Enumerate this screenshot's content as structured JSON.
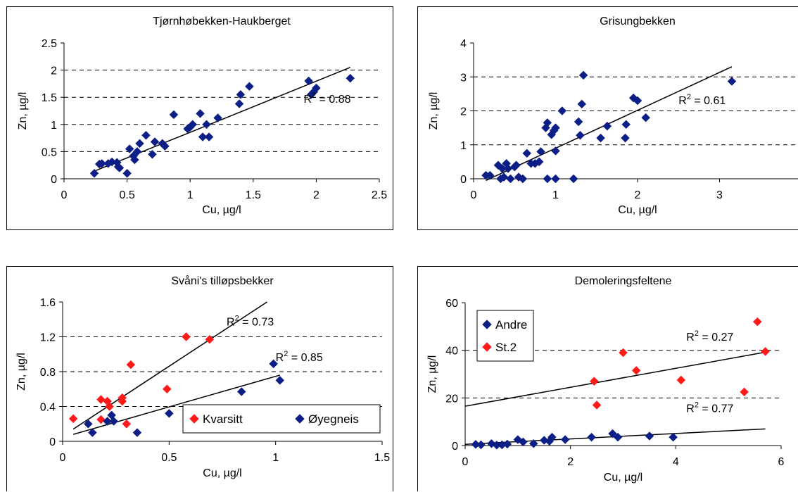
{
  "colors": {
    "blue": "#0c1f86",
    "red": "#ff1a1a",
    "grid": "#000000",
    "line": "#000000"
  },
  "chart_data": [
    {
      "type": "scatter",
      "title": "Tjørnhøbekken-Haukberget",
      "xlabel": "Cu, µg/l",
      "ylabel": "Zn, µg/l",
      "xlim": [
        0,
        2.5
      ],
      "ylim": [
        0,
        2.5
      ],
      "xticks": [
        "0",
        "0.5",
        "1",
        "1.5",
        "2",
        "2.5"
      ],
      "yticks": [
        "0",
        "0.5",
        "1",
        "1.5",
        "2",
        "2.5"
      ],
      "grid": "horizontal-dashed",
      "legend": null,
      "series": [
        {
          "marker": "diamond",
          "color": "blue",
          "points": [
            [
              0.24,
              0.1
            ],
            [
              0.28,
              0.27
            ],
            [
              0.3,
              0.28
            ],
            [
              0.35,
              0.28
            ],
            [
              0.38,
              0.31
            ],
            [
              0.42,
              0.3
            ],
            [
              0.43,
              0.22
            ],
            [
              0.44,
              0.2
            ],
            [
              0.5,
              0.1
            ],
            [
              0.52,
              0.55
            ],
            [
              0.55,
              0.42
            ],
            [
              0.56,
              0.35
            ],
            [
              0.58,
              0.5
            ],
            [
              0.6,
              0.65
            ],
            [
              0.65,
              0.8
            ],
            [
              0.7,
              0.45
            ],
            [
              0.72,
              0.68
            ],
            [
              0.78,
              0.65
            ],
            [
              0.8,
              0.6
            ],
            [
              0.87,
              1.18
            ],
            [
              0.98,
              0.92
            ],
            [
              1.0,
              0.95
            ],
            [
              1.02,
              1.0
            ],
            [
              1.08,
              1.2
            ],
            [
              1.1,
              0.77
            ],
            [
              1.13,
              1.0
            ],
            [
              1.15,
              0.77
            ],
            [
              1.22,
              1.12
            ],
            [
              1.39,
              1.38
            ],
            [
              1.4,
              1.55
            ],
            [
              1.47,
              1.7
            ],
            [
              1.94,
              1.8
            ],
            [
              1.96,
              1.55
            ],
            [
              1.98,
              1.6
            ],
            [
              2.0,
              1.67
            ],
            [
              2.27,
              1.85
            ]
          ]
        }
      ],
      "trendlines": [
        {
          "x": [
            0.25,
            2.27
          ],
          "y": [
            0.15,
            2.05
          ]
        }
      ],
      "annotations": [
        {
          "base": "R",
          "sup": "2",
          "rest": " = 0.88",
          "x": 1.9,
          "y": 1.4
        }
      ]
    },
    {
      "type": "scatter",
      "title": "Grisungbekken",
      "xlabel": "Cu, µg/l",
      "ylabel": "Zn, µg/l",
      "xlim": [
        0,
        4
      ],
      "ylim": [
        0,
        4
      ],
      "xticks": [
        "0",
        "1",
        "2",
        "3",
        "4"
      ],
      "yticks": [
        "0",
        "1",
        "2",
        "3",
        "4"
      ],
      "grid": "horizontal-dashed",
      "legend": null,
      "series": [
        {
          "marker": "diamond",
          "color": "blue",
          "points": [
            [
              0.15,
              0.1
            ],
            [
              0.2,
              0.1
            ],
            [
              0.3,
              0.4
            ],
            [
              0.33,
              0.0
            ],
            [
              0.35,
              0.3
            ],
            [
              0.37,
              0.05
            ],
            [
              0.4,
              0.45
            ],
            [
              0.42,
              0.3
            ],
            [
              0.45,
              0.0
            ],
            [
              0.5,
              0.35
            ],
            [
              0.52,
              0.4
            ],
            [
              0.55,
              0.05
            ],
            [
              0.6,
              0.0
            ],
            [
              0.65,
              0.75
            ],
            [
              0.7,
              0.45
            ],
            [
              0.75,
              0.45
            ],
            [
              0.8,
              0.5
            ],
            [
              0.82,
              0.8
            ],
            [
              0.88,
              1.5
            ],
            [
              0.9,
              1.65
            ],
            [
              0.9,
              0.0
            ],
            [
              0.95,
              1.3
            ],
            [
              0.98,
              1.42
            ],
            [
              1.0,
              1.5
            ],
            [
              1.0,
              0.82
            ],
            [
              1.0,
              0.0
            ],
            [
              1.08,
              2.0
            ],
            [
              1.22,
              0.0
            ],
            [
              1.28,
              1.68
            ],
            [
              1.3,
              1.28
            ],
            [
              1.32,
              2.2
            ],
            [
              1.34,
              3.05
            ],
            [
              1.55,
              1.2
            ],
            [
              1.63,
              1.55
            ],
            [
              1.85,
              1.2
            ],
            [
              1.86,
              1.6
            ],
            [
              1.95,
              2.38
            ],
            [
              2.0,
              2.3
            ],
            [
              2.1,
              1.8
            ],
            [
              3.15,
              2.87
            ]
          ]
        }
      ],
      "trendlines": [
        {
          "x": [
            0.15,
            3.15
          ],
          "y": [
            -0.05,
            3.3
          ]
        }
      ],
      "annotations": [
        {
          "base": "R",
          "sup": "2",
          "rest": " = 0.61",
          "x": 2.5,
          "y": 2.2
        }
      ]
    },
    {
      "type": "scatter",
      "title": "Svåni's tilløpsbekker",
      "xlabel": "Cu, µg/l",
      "ylabel": "Zn, µg/l",
      "xlim": [
        0,
        1.5
      ],
      "ylim": [
        0,
        1.6
      ],
      "xticks": [
        "0",
        "0.5",
        "1",
        "1.5"
      ],
      "yticks": [
        "0",
        "0.4",
        "0.8",
        "1.2",
        "1.6"
      ],
      "grid": "horizontal-dashed",
      "legend": "bottom-right",
      "series": [
        {
          "name": "Kvarsitt",
          "marker": "diamond",
          "color": "red",
          "points": [
            [
              0.05,
              0.26
            ],
            [
              0.18,
              0.25
            ],
            [
              0.18,
              0.48
            ],
            [
              0.21,
              0.46
            ],
            [
              0.22,
              0.4
            ],
            [
              0.28,
              0.5
            ],
            [
              0.28,
              0.46
            ],
            [
              0.3,
              0.2
            ],
            [
              0.32,
              0.88
            ],
            [
              0.49,
              0.6
            ],
            [
              0.58,
              1.2
            ],
            [
              0.69,
              1.17
            ]
          ]
        },
        {
          "name": "Øyegneis",
          "marker": "diamond",
          "color": "blue",
          "points": [
            [
              0.12,
              0.2
            ],
            [
              0.14,
              0.1
            ],
            [
              0.21,
              0.23
            ],
            [
              0.23,
              0.3
            ],
            [
              0.24,
              0.23
            ],
            [
              0.35,
              0.1
            ],
            [
              0.5,
              0.32
            ],
            [
              0.84,
              0.57
            ],
            [
              0.99,
              0.89
            ],
            [
              1.02,
              0.7
            ]
          ]
        }
      ],
      "trendlines": [
        {
          "x": [
            0.05,
            0.96
          ],
          "y": [
            0.14,
            1.6
          ]
        },
        {
          "x": [
            0.05,
            1.02
          ],
          "y": [
            0.08,
            0.76
          ]
        }
      ],
      "annotations": [
        {
          "base": "R",
          "sup": "2",
          "rest": " = 0.73",
          "x": 0.77,
          "y": 1.33
        },
        {
          "base": "R",
          "sup": "2",
          "rest": " = 0.85",
          "x": 1.0,
          "y": 0.92
        }
      ]
    },
    {
      "type": "scatter",
      "title": "Demoleringsfeltene",
      "xlabel": "Cu, µg/l",
      "ylabel": "Zn, µg/l",
      "xlim": [
        0,
        6
      ],
      "ylim": [
        0,
        60
      ],
      "xticks": [
        "0",
        "2",
        "4",
        "6"
      ],
      "yticks": [
        "0",
        "20",
        "40",
        "60"
      ],
      "grid": "horizontal-dashed",
      "legend": "top-left",
      "series": [
        {
          "name": "Andre",
          "marker": "diamond",
          "color": "blue",
          "points": [
            [
              0.2,
              0.5
            ],
            [
              0.3,
              0.3
            ],
            [
              0.5,
              0.8
            ],
            [
              0.6,
              0.2
            ],
            [
              0.7,
              0.3
            ],
            [
              0.8,
              0.6
            ],
            [
              1.0,
              2.5
            ],
            [
              1.1,
              1.5
            ],
            [
              1.3,
              0.8
            ],
            [
              1.5,
              2.2
            ],
            [
              1.6,
              1.8
            ],
            [
              1.65,
              3.5
            ],
            [
              1.9,
              2.5
            ],
            [
              2.4,
              3.5
            ],
            [
              2.8,
              5.0
            ],
            [
              2.9,
              3.5
            ],
            [
              3.5,
              4.0
            ],
            [
              3.95,
              3.5
            ]
          ]
        },
        {
          "name": "St.2",
          "marker": "diamond",
          "color": "red",
          "points": [
            [
              2.45,
              27
            ],
            [
              2.5,
              17
            ],
            [
              3.0,
              39
            ],
            [
              3.25,
              31.5
            ],
            [
              4.1,
              27.5
            ],
            [
              5.3,
              22.5
            ],
            [
              5.55,
              52
            ],
            [
              5.7,
              39.5
            ]
          ]
        }
      ],
      "trendlines": [
        {
          "x": [
            0,
            5.7
          ],
          "y": [
            16.5,
            39.2
          ]
        },
        {
          "x": [
            0,
            5.7
          ],
          "y": [
            0.5,
            7.0
          ]
        }
      ],
      "annotations": [
        {
          "base": "R",
          "sup": "2",
          "rest": " = 0.27",
          "x": 4.2,
          "y": 44
        },
        {
          "base": "R",
          "sup": "2",
          "rest": " = 0.77",
          "x": 4.2,
          "y": 14
        }
      ]
    }
  ]
}
